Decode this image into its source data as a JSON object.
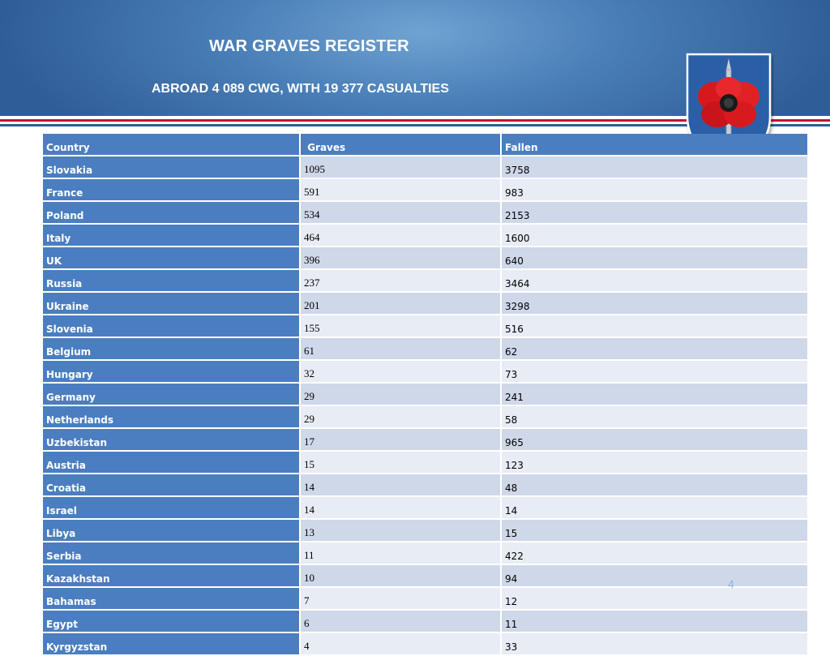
{
  "slide": {
    "title": "WAR GRAVES REGISTER",
    "subtitle": "ABROAD 4 089 CWG, WITH 19 377 CASUALTIES",
    "page_number": "4"
  },
  "table": {
    "headers": [
      "Country",
      "Graves",
      "Fallen"
    ],
    "rows": [
      [
        "Slovakia",
        "1095",
        "3758"
      ],
      [
        "France",
        "591",
        "983"
      ],
      [
        "Poland",
        "534",
        "2153"
      ],
      [
        "Italy",
        "464",
        "1600"
      ],
      [
        "UK",
        "396",
        "640"
      ],
      [
        "Russia",
        "237",
        "3464"
      ],
      [
        "Ukraine",
        "201",
        "3298"
      ],
      [
        "Slovenia",
        "155",
        "516"
      ],
      [
        "Belgium",
        "61",
        "62"
      ],
      [
        "Hungary",
        "32",
        "73"
      ],
      [
        "Germany",
        "29",
        "241"
      ],
      [
        "Netherlands",
        "29",
        "58"
      ],
      [
        "Uzbekistan",
        "17",
        "965"
      ],
      [
        "Austria",
        "15",
        "123"
      ],
      [
        "Croatia",
        "14",
        "48"
      ],
      [
        "Israel",
        "14",
        "14"
      ],
      [
        "Libya",
        "13",
        "15"
      ],
      [
        "Serbia",
        "11",
        "422"
      ],
      [
        "Kazakhstan",
        "10",
        "94"
      ],
      [
        "Bahamas",
        "7",
        "12"
      ],
      [
        "Egypt",
        "6",
        "11"
      ],
      [
        "Kyrgyzstan",
        "4",
        "33"
      ]
    ]
  },
  "colors": {
    "header_blue": "#2f5d97",
    "table_header": "#4a7ec0",
    "row_alt_1": "#cfd8e9",
    "row_alt_2": "#e8ecf4",
    "poppy_red": "#d7191c"
  },
  "icons": {
    "crest": "poppy-sword-crest-icon"
  }
}
